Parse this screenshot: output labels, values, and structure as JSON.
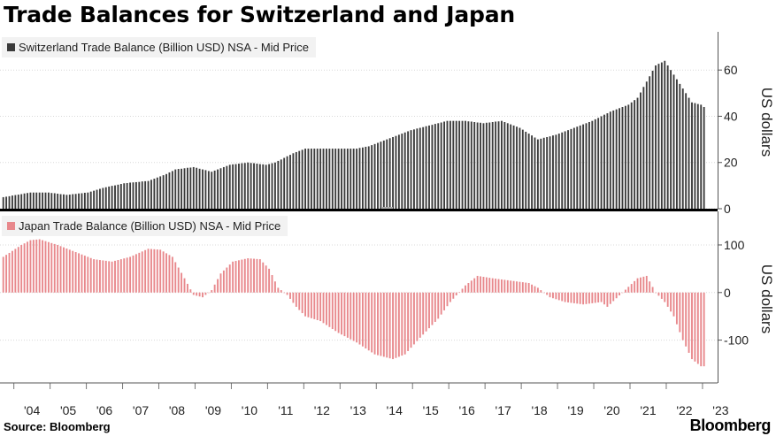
{
  "title": "Trade Balances for Switzerland and Japan",
  "source": "Source: Bloomberg",
  "brand": "Bloomberg",
  "x_axis": {
    "labels": [
      "'04",
      "'05",
      "'06",
      "'07",
      "'08",
      "'09",
      "'10",
      "'11",
      "'12",
      "'13",
      "'14",
      "'15",
      "'16",
      "'17",
      "'18",
      "'19",
      "'20",
      "'21",
      "'22",
      "'23"
    ]
  },
  "chart_data": [
    {
      "type": "bar",
      "title": "Trade Balances for Switzerland and Japan",
      "legend": "Switzerland Trade Balance (Billion USD) NSA - Mid Price",
      "ylabel": "US dollars",
      "color": "#3b3b3b",
      "ylim": [
        0,
        75
      ],
      "yticks": [
        0,
        20,
        40,
        60
      ],
      "frequency": "monthly",
      "start": "2003-09",
      "anchors": [
        [
          "2003-09",
          5
        ],
        [
          "2004-06",
          7
        ],
        [
          "2004-12",
          7
        ],
        [
          "2005-06",
          6
        ],
        [
          "2006-01",
          7
        ],
        [
          "2006-06",
          9
        ],
        [
          "2007-01",
          11
        ],
        [
          "2007-09",
          12
        ],
        [
          "2008-03",
          15
        ],
        [
          "2008-06",
          17
        ],
        [
          "2008-12",
          18
        ],
        [
          "2009-06",
          16
        ],
        [
          "2009-12",
          19
        ],
        [
          "2010-06",
          20
        ],
        [
          "2010-12",
          19
        ],
        [
          "2011-03",
          20
        ],
        [
          "2011-09",
          24
        ],
        [
          "2012-01",
          26
        ],
        [
          "2012-06",
          26
        ],
        [
          "2013-06",
          26
        ],
        [
          "2013-10",
          27
        ],
        [
          "2014-02",
          29
        ],
        [
          "2014-06",
          31
        ],
        [
          "2014-12",
          34
        ],
        [
          "2015-06",
          36
        ],
        [
          "2015-12",
          38
        ],
        [
          "2016-06",
          38
        ],
        [
          "2016-12",
          37
        ],
        [
          "2017-06",
          38
        ],
        [
          "2017-12",
          35
        ],
        [
          "2018-06",
          30
        ],
        [
          "2018-12",
          32
        ],
        [
          "2019-06",
          35
        ],
        [
          "2019-12",
          38
        ],
        [
          "2020-06",
          42
        ],
        [
          "2020-12",
          45
        ],
        [
          "2021-03",
          48
        ],
        [
          "2021-06",
          55
        ],
        [
          "2021-09",
          62
        ],
        [
          "2021-12",
          64
        ],
        [
          "2022-03",
          58
        ],
        [
          "2022-06",
          52
        ],
        [
          "2022-09",
          46
        ],
        [
          "2022-12",
          45
        ],
        [
          "2023-01",
          44
        ]
      ]
    },
    {
      "type": "bar",
      "legend": "Japan Trade Balance (Billion USD) NSA - Mid Price",
      "ylabel": "US dollars",
      "color": "#e8888c",
      "ylim": [
        -190,
        165
      ],
      "yticks": [
        -100,
        0,
        100
      ],
      "frequency": "monthly",
      "start": "2003-09",
      "anchors": [
        [
          "2003-09",
          75
        ],
        [
          "2004-03",
          100
        ],
        [
          "2004-06",
          110
        ],
        [
          "2004-09",
          112
        ],
        [
          "2005-03",
          100
        ],
        [
          "2005-09",
          85
        ],
        [
          "2006-03",
          70
        ],
        [
          "2006-09",
          65
        ],
        [
          "2007-03",
          75
        ],
        [
          "2007-09",
          92
        ],
        [
          "2008-01",
          90
        ],
        [
          "2008-05",
          75
        ],
        [
          "2008-09",
          30
        ],
        [
          "2008-12",
          -5
        ],
        [
          "2009-03",
          -10
        ],
        [
          "2009-06",
          5
        ],
        [
          "2009-09",
          40
        ],
        [
          "2010-01",
          65
        ],
        [
          "2010-06",
          72
        ],
        [
          "2010-10",
          70
        ],
        [
          "2011-01",
          50
        ],
        [
          "2011-04",
          10
        ],
        [
          "2011-07",
          -5
        ],
        [
          "2011-10",
          -30
        ],
        [
          "2012-01",
          -50
        ],
        [
          "2012-06",
          -60
        ],
        [
          "2012-12",
          -85
        ],
        [
          "2013-06",
          -105
        ],
        [
          "2013-12",
          -130
        ],
        [
          "2014-06",
          -140
        ],
        [
          "2014-10",
          -130
        ],
        [
          "2015-03",
          -95
        ],
        [
          "2015-09",
          -55
        ],
        [
          "2016-01",
          -20
        ],
        [
          "2016-06",
          15
        ],
        [
          "2016-10",
          35
        ],
        [
          "2017-03",
          30
        ],
        [
          "2017-09",
          25
        ],
        [
          "2018-03",
          20
        ],
        [
          "2018-06",
          10
        ],
        [
          "2018-10",
          -10
        ],
        [
          "2019-03",
          -20
        ],
        [
          "2019-09",
          -25
        ],
        [
          "2020-03",
          -20
        ],
        [
          "2020-05",
          -30
        ],
        [
          "2020-10",
          0
        ],
        [
          "2021-03",
          30
        ],
        [
          "2021-06",
          35
        ],
        [
          "2021-09",
          0
        ],
        [
          "2021-12",
          -20
        ],
        [
          "2022-03",
          -50
        ],
        [
          "2022-06",
          -100
        ],
        [
          "2022-09",
          -140
        ],
        [
          "2022-12",
          -155
        ],
        [
          "2023-01",
          -155
        ]
      ]
    }
  ]
}
